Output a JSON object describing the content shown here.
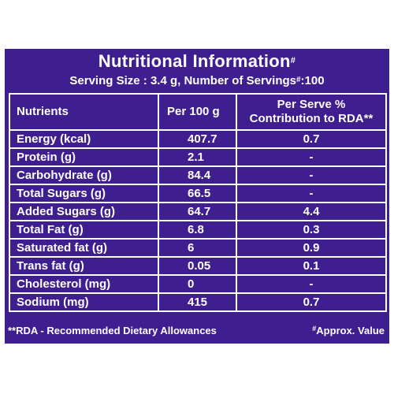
{
  "panel": {
    "background": "#3f1f8f",
    "title": "Nutritional Information",
    "title_mark": "#",
    "serving_prefix": "Serving Size : 3.4 g, Number of Servings",
    "serving_mark": "#",
    "serving_suffix": ":100"
  },
  "table": {
    "headers": {
      "nutrients": "Nutrients",
      "per100": "Per 100 g",
      "per_serve_line1": "Per Serve %",
      "per_serve_line2": "Contribution to RDA**"
    },
    "rows": [
      {
        "name": "Energy (kcal)",
        "per100": "407.7",
        "rda": "0.7"
      },
      {
        "name": "Protein (g)",
        "per100": "2.1",
        "rda": "-"
      },
      {
        "name": "Carbohydrate (g)",
        "per100": "84.4",
        "rda": "-"
      },
      {
        "name": "Total Sugars (g)",
        "per100": "66.5",
        "rda": "-"
      },
      {
        "name": "Added Sugars (g)",
        "per100": "64.7",
        "rda": "4.4"
      },
      {
        "name": "Total Fat (g)",
        "per100": "6.8",
        "rda": "0.3"
      },
      {
        "name": "Saturated fat (g)",
        "per100": "6",
        "rda": "0.9"
      },
      {
        "name": "Trans fat (g)",
        "per100": "0.05",
        "rda": "0.1"
      },
      {
        "name": "Cholesterol (mg)",
        "per100": "0",
        "rda": "-"
      },
      {
        "name": "Sodium (mg)",
        "per100": "415",
        "rda": "0.7"
      }
    ]
  },
  "footer": {
    "rda_note": "**RDA - Recommended Dietary Allowances",
    "approx_mark": "#",
    "approx_note": "Approx. Value"
  }
}
